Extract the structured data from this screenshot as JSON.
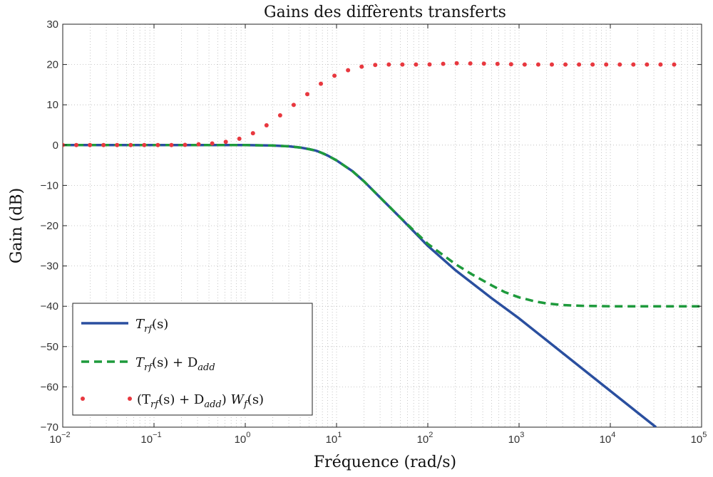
{
  "chart_data": {
    "type": "line",
    "title": "Gains des diffèrents transferts",
    "xlabel": "Fréquence (rad/s)",
    "ylabel": "Gain (dB)",
    "x_scale": "log",
    "xlim": [
      0.01,
      100000
    ],
    "ylim": [
      -70,
      30
    ],
    "grid": true,
    "legend_position": "bottom-left",
    "x_ticks": [
      {
        "base": "10",
        "exp": "−2"
      },
      {
        "base": "10",
        "exp": "−1"
      },
      {
        "base": "10",
        "exp": "0"
      },
      {
        "base": "10",
        "exp": "1"
      },
      {
        "base": "10",
        "exp": "2"
      },
      {
        "base": "10",
        "exp": "3"
      },
      {
        "base": "10",
        "exp": "4"
      },
      {
        "base": "10",
        "exp": "5"
      }
    ],
    "y_ticks": [
      30,
      20,
      10,
      0,
      -10,
      -20,
      -30,
      -40,
      -50,
      -60,
      -70
    ],
    "y_tick_labels": [
      "30",
      "20",
      "10",
      "0",
      "−10",
      "−20",
      "−30",
      "−40",
      "−50",
      "−60",
      "−70"
    ],
    "series": [
      {
        "name": "T_rf(s)",
        "style": "solid",
        "color": "#2a4f9f",
        "x": [
          0.01,
          0.1,
          1,
          2,
          3,
          4,
          5,
          6,
          7,
          8,
          10,
          15,
          20,
          30,
          50,
          100,
          200,
          500,
          1000,
          10000,
          31600
        ],
        "y": [
          0,
          0,
          0,
          -0.1,
          -0.3,
          -0.6,
          -1.0,
          -1.4,
          -2.0,
          -2.6,
          -3.8,
          -6.5,
          -9.0,
          -13.0,
          -18.0,
          -25.0,
          -31.0,
          -38.0,
          -43.0,
          -61.0,
          -70.0
        ]
      },
      {
        "name": "T_rf(s) + D_add",
        "style": "dashed",
        "color": "#1e9a3c",
        "x": [
          0.01,
          0.1,
          1,
          2,
          3,
          4,
          5,
          6,
          7,
          8,
          10,
          15,
          20,
          30,
          50,
          100,
          200,
          300,
          500,
          700,
          1000,
          1500,
          2000,
          3000,
          5000,
          10000,
          30000,
          100000
        ],
        "y": [
          0,
          0,
          0,
          -0.1,
          -0.3,
          -0.6,
          -1.0,
          -1.4,
          -2.0,
          -2.6,
          -3.8,
          -6.5,
          -9.0,
          -13.0,
          -18.0,
          -24.5,
          -29.5,
          -32.0,
          -34.8,
          -36.5,
          -37.8,
          -38.8,
          -39.3,
          -39.7,
          -39.9,
          -40.0,
          -40.0,
          -40.0
        ]
      },
      {
        "name": "(T_rf(s) + D_add) W_f(s)",
        "style": "dotted",
        "color": "#e8383f",
        "x": [
          0.01,
          0.02,
          0.05,
          0.1,
          0.2,
          0.3,
          0.5,
          0.7,
          1,
          1.5,
          2,
          3,
          5,
          7,
          10,
          15,
          20,
          30,
          50,
          100,
          200,
          500,
          1000,
          10000,
          50000
        ],
        "y": [
          0,
          0,
          0,
          0,
          0,
          0.2,
          0.5,
          1.0,
          2.0,
          4.0,
          6.0,
          9.0,
          13.0,
          15.5,
          17.5,
          19.0,
          19.6,
          20.0,
          20.0,
          20.0,
          20.3,
          20.2,
          20.0,
          20.0,
          20.0
        ]
      }
    ]
  },
  "legend": {
    "item1": {
      "main": "T",
      "sub": "rf",
      "rest": "(s)"
    },
    "item2": {
      "main": "T",
      "sub": "rf",
      "mid": "(s) + D",
      "sub2": "add"
    },
    "item3": {
      "open": "(T",
      "sub": "rf",
      "mid": "(s) + D",
      "sub2": "add",
      "close": ") ",
      "w": "W",
      "wsub": "f",
      "rest": "(s)"
    }
  }
}
